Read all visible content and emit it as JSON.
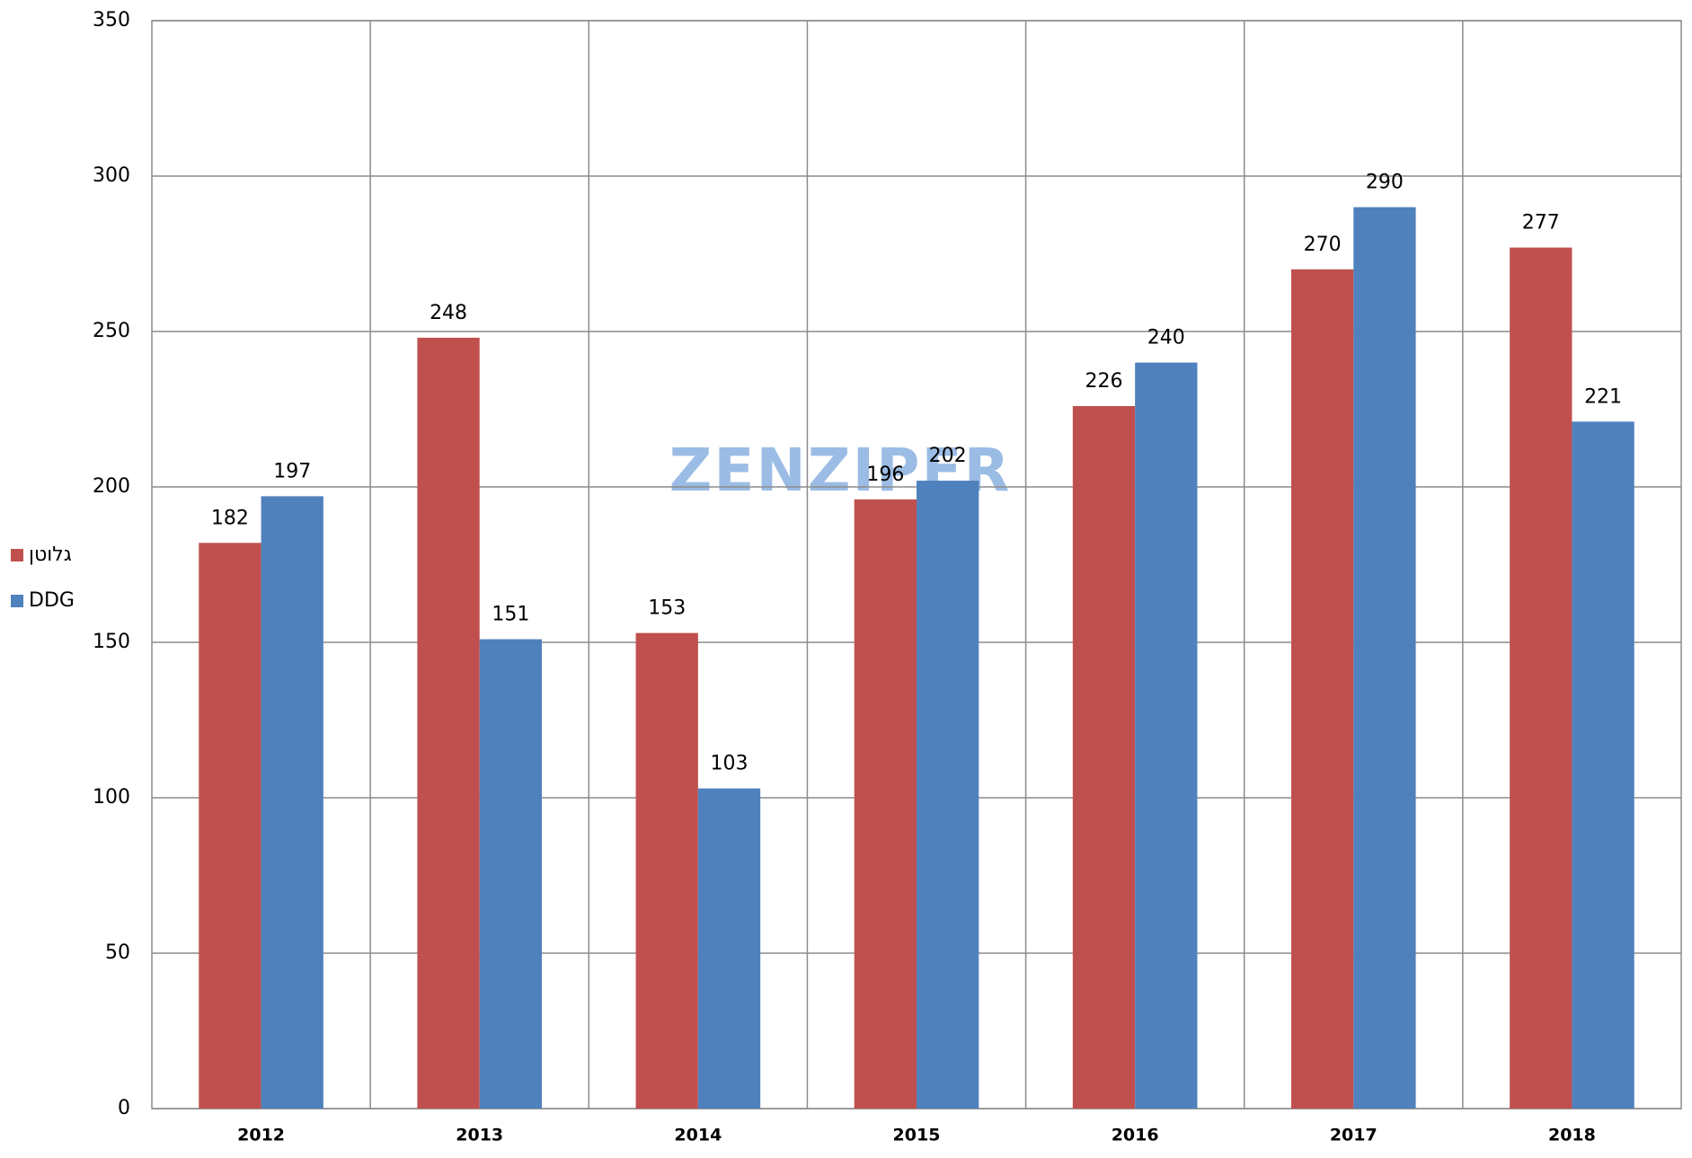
{
  "chart_data": {
    "type": "bar",
    "categories": [
      "2012",
      "2013",
      "2014",
      "2015",
      "2016",
      "2017",
      "2018"
    ],
    "series": [
      {
        "name": "גלוטן",
        "color": "#c0504d",
        "values": [
          182,
          248,
          153,
          196,
          226,
          270,
          277
        ]
      },
      {
        "name": "DDG",
        "color": "#4f81bd",
        "values": [
          197,
          151,
          103,
          202,
          240,
          290,
          221
        ]
      }
    ],
    "ylim": [
      0,
      350
    ],
    "yticks": [
      0,
      50,
      100,
      150,
      200,
      250,
      300,
      350
    ],
    "grid": true,
    "legend": "left",
    "watermark": "ZENZIPER"
  }
}
